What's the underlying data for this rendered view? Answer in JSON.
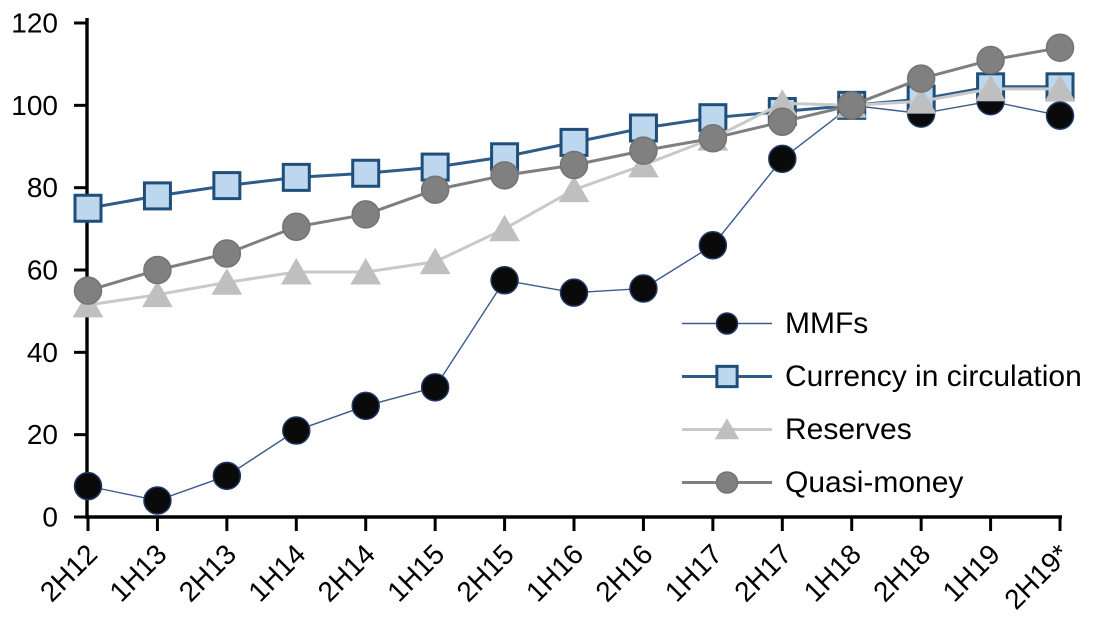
{
  "chart_data": {
    "type": "line",
    "title": "",
    "xlabel": "",
    "ylabel": "",
    "categories": [
      "2H12",
      "1H13",
      "2H13",
      "1H14",
      "2H14",
      "1H15",
      "2H15",
      "1H16",
      "2H16",
      "1H17",
      "2H17",
      "1H18",
      "2H18",
      "1H19",
      "2H19*"
    ],
    "series": [
      {
        "name": "MMFs",
        "marker": "circle",
        "marker_size": 27,
        "marker_fill": "#0a0a0a",
        "marker_stroke": "#1F3864",
        "line_color": "#3B5B8C",
        "line_width": 1.4,
        "values": [
          7.5,
          4,
          10,
          21,
          27,
          31.5,
          57.5,
          54.5,
          55.5,
          66,
          87,
          100,
          98,
          101,
          97.5
        ]
      },
      {
        "name": "Currency in circulation",
        "marker": "square",
        "marker_size": 26,
        "marker_fill": "#BDD7EE",
        "marker_stroke": "#1F4E79",
        "line_color": "#2E5C8A",
        "line_width": 3,
        "values": [
          75,
          78,
          80.5,
          82.5,
          83.5,
          85,
          87.5,
          91,
          94.5,
          97,
          98.5,
          100,
          101.5,
          104.5,
          104.5
        ]
      },
      {
        "name": "Reserves",
        "marker": "triangle",
        "marker_size": 29,
        "marker_fill": "#BFBFBF",
        "marker_stroke": "#BFBFBF",
        "line_color": "#C9C9C9",
        "line_width": 3,
        "values": [
          51.5,
          54,
          57,
          59.5,
          59.5,
          62,
          70,
          79.5,
          85.5,
          92,
          100.5,
          100,
          101,
          104,
          104
        ]
      },
      {
        "name": "Quasi-money",
        "marker": "circle",
        "marker_size": 27,
        "marker_fill": "#808080",
        "marker_stroke": "#747474",
        "line_color": "#7F7F7F",
        "line_width": 3,
        "values": [
          55,
          60,
          64,
          70.5,
          73.5,
          79.5,
          83,
          85.5,
          89,
          92,
          96,
          100,
          106.5,
          111,
          114
        ]
      }
    ],
    "ylim": [
      0,
      120
    ],
    "yticks": [
      0,
      20,
      40,
      60,
      80,
      100,
      120
    ],
    "grid": false,
    "legend_position": "inside-right",
    "axis_color": "#000000",
    "tick_label_color": "#000000"
  }
}
